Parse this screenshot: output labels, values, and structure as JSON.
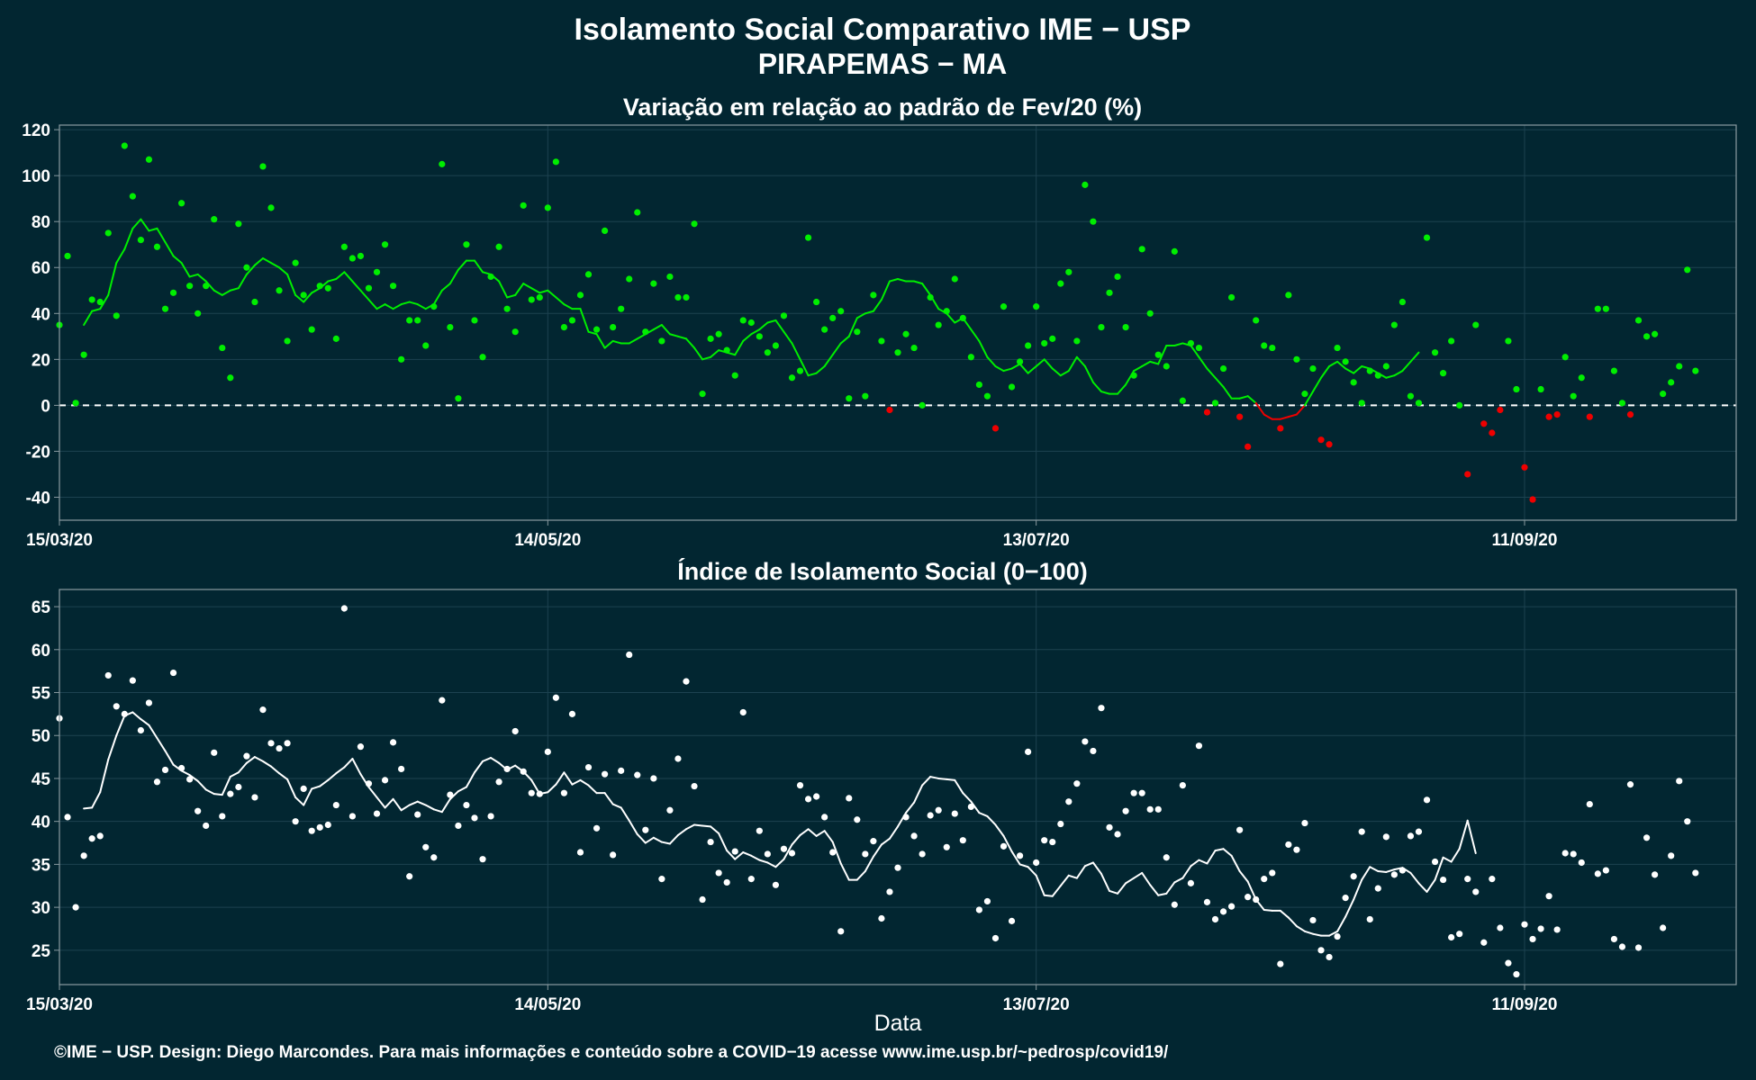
{
  "header": {
    "title_line1": "Isolamento Social Comparativo IME − USP",
    "title_line2": "PIRAPEMAS − MA"
  },
  "footer": {
    "credit": "©IME − USP. Design: Diego Marcondes. Para mais informações e conteúdo sobre a COVID−19 acesse www.ime.usp.br/~pedrosp/covid19/"
  },
  "colors": {
    "background": "#022631",
    "panel_border": "#8a9aa0",
    "grid": "#1d4250",
    "positive": "#00ee00",
    "negative": "#ee0000",
    "index_series": "#ffffff"
  },
  "chart_data": [
    {
      "type": "scatter",
      "title": "Variação em relação ao padrão de Fev/20 (%)",
      "xlabel": "",
      "ylabel": "",
      "x_start_date": "2020-03-15",
      "x_end_date": "2020-10-07",
      "x_ticks": [
        "15/03/20",
        "14/05/20",
        "13/07/20",
        "11/09/20"
      ],
      "y_ticks": [
        120,
        100,
        80,
        60,
        40,
        20,
        0,
        -20,
        -40
      ],
      "ylim": [
        -50,
        122
      ],
      "reference_line": 0,
      "grid": true,
      "series": [
        {
          "role": "daily",
          "values": [
            35,
            65,
            1,
            22,
            46,
            45,
            75,
            39,
            113,
            91,
            72,
            107,
            69,
            42,
            49,
            88,
            52,
            40,
            52,
            81,
            25,
            12,
            79,
            60,
            45,
            104,
            86,
            50,
            28,
            62,
            48,
            33,
            52,
            51,
            29,
            69,
            64,
            65,
            51,
            58,
            70,
            52,
            20,
            37,
            37,
            26,
            43,
            105,
            34,
            3,
            70,
            37,
            21,
            56,
            69,
            42,
            32,
            87,
            46,
            47,
            86,
            106,
            34,
            37,
            48,
            57,
            33,
            76,
            34,
            42,
            55,
            84,
            32,
            53,
            28,
            56,
            47,
            47,
            79,
            5,
            29,
            31,
            24,
            13,
            37,
            36,
            30,
            23,
            26,
            39,
            12,
            15,
            73,
            45,
            33,
            38,
            41,
            3,
            32,
            4,
            48,
            28,
            -2,
            23,
            31,
            25,
            0,
            47,
            35,
            41,
            55,
            38,
            21,
            9,
            4,
            -10,
            43,
            8,
            19,
            26,
            43,
            27,
            29,
            53,
            58,
            28,
            96,
            80,
            34,
            49,
            56,
            34,
            13,
            68,
            40,
            22,
            17,
            67,
            2,
            27,
            25,
            -3,
            1,
            16,
            47,
            -5,
            -18,
            37,
            26,
            25,
            -10,
            48,
            20,
            5,
            16,
            -15,
            -17,
            25,
            19,
            10,
            1,
            15,
            13,
            17,
            35,
            45,
            4,
            1,
            73,
            23,
            14,
            28,
            0,
            -30,
            35,
            -8,
            -12,
            -2,
            28,
            7,
            -27,
            -41,
            7,
            -5,
            -4,
            21,
            4,
            12,
            -5,
            42,
            42,
            15,
            1,
            -4,
            37,
            30,
            31,
            5,
            10,
            17,
            59,
            15
          ]
        },
        {
          "role": "moving-average",
          "values": [
            null,
            null,
            null,
            35,
            41,
            42,
            48,
            62,
            68,
            77,
            81,
            76,
            77,
            71,
            65,
            62,
            56,
            57,
            54,
            50,
            48,
            50,
            51,
            57,
            61,
            64,
            62,
            60,
            57,
            48,
            45,
            49,
            51,
            54,
            55,
            58,
            54,
            50,
            46,
            42,
            44,
            42,
            44,
            45,
            44,
            42,
            44,
            50,
            53,
            59,
            63,
            63,
            58,
            57,
            54,
            47,
            48,
            53,
            51,
            49,
            50,
            47,
            44,
            42,
            42,
            32,
            31,
            25,
            28,
            27,
            27,
            29,
            31,
            33,
            35,
            31,
            30,
            29,
            25,
            20,
            21,
            24,
            23,
            22,
            28,
            31,
            33,
            36,
            37,
            32,
            27,
            20,
            13,
            14,
            17,
            22,
            27,
            30,
            38,
            40,
            41,
            46,
            54,
            55,
            54,
            54,
            53,
            48,
            42,
            40,
            36,
            38,
            33,
            28,
            21,
            17,
            15,
            16,
            18,
            14,
            17,
            20,
            16,
            13,
            15,
            21,
            17,
            10,
            6,
            5,
            5,
            9,
            15,
            17,
            19,
            18,
            26,
            26,
            27,
            26,
            21,
            16,
            12,
            8,
            3,
            3,
            4,
            1,
            -4,
            -6,
            -6,
            -5,
            -4,
            0,
            6,
            12,
            17,
            19,
            16,
            14,
            17,
            16,
            14,
            12,
            13,
            15,
            19,
            23
          ]
        }
      ]
    },
    {
      "type": "scatter",
      "title": "Índice de Isolamento Social (0−100)",
      "xlabel": "Data",
      "ylabel": "",
      "x_start_date": "2020-03-15",
      "x_end_date": "2020-10-07",
      "x_ticks": [
        "15/03/20",
        "14/05/20",
        "13/07/20",
        "11/09/20"
      ],
      "y_ticks": [
        65,
        60,
        55,
        50,
        45,
        40,
        35,
        30,
        25
      ],
      "ylim": [
        21,
        67
      ],
      "grid": true,
      "series": [
        {
          "role": "daily",
          "values": [
            52,
            40.5,
            30,
            36,
            38,
            38.3,
            57,
            53.4,
            52.5,
            56.4,
            50.6,
            53.8,
            44.6,
            46,
            57.3,
            46.2,
            44.9,
            41.2,
            39.5,
            48,
            40.6,
            43.2,
            44,
            47.6,
            42.8,
            53,
            49.1,
            48.5,
            49.1,
            40,
            43.8,
            38.9,
            39.3,
            39.6,
            41.9,
            64.8,
            40.6,
            48.7,
            44.4,
            40.9,
            44.8,
            49.2,
            46.1,
            33.6,
            40.8,
            37,
            35.8,
            54.1,
            43.1,
            39.5,
            41.9,
            40.4,
            35.6,
            40.6,
            44.6,
            46.1,
            50.5,
            45.8,
            43.3,
            43.2,
            48.1,
            54.4,
            43.3,
            52.5,
            36.4,
            46.3,
            39.2,
            45.5,
            36.1,
            45.9,
            59.4,
            45.4,
            39,
            45,
            33.3,
            41.3,
            47.3,
            56.3,
            44.1,
            30.9,
            37.6,
            34,
            32.9,
            36.5,
            52.7,
            33.3,
            38.9,
            36.2,
            32.6,
            36.8,
            36.3,
            44.2,
            42.6,
            42.9,
            40.5,
            36.4,
            27.2,
            42.7,
            40.2,
            36.2,
            37.7,
            28.7,
            31.8,
            34.6,
            40.5,
            38.3,
            36.2,
            40.7,
            41.3,
            37,
            40.9,
            37.8,
            41.7,
            29.7,
            30.7,
            26.4,
            37.1,
            28.4,
            36,
            48.1,
            35.2,
            37.8,
            37.6,
            39.7,
            42.3,
            44.4,
            49.3,
            48.2,
            53.2,
            39.3,
            38.5,
            41.2,
            43.3,
            43.3,
            41.4,
            41.4,
            35.8,
            30.3,
            44.2,
            32.8,
            48.8,
            30.6,
            28.6,
            29.5,
            30.1,
            39,
            31.2,
            30.9,
            33.3,
            34,
            23.4,
            37.3,
            36.7,
            39.8,
            28.5,
            25,
            24.2,
            26.6,
            31.1,
            33.6,
            38.8,
            28.6,
            32.2,
            38.2,
            33.8,
            34.3,
            38.3,
            38.8,
            42.5,
            35.3,
            33.2,
            26.5,
            26.9,
            33.3,
            31.8,
            25.9,
            33.3,
            27.6,
            23.5,
            22.2,
            28,
            26.3,
            27.5,
            31.3,
            27.4,
            36.3,
            36.2,
            35.2,
            42,
            33.9,
            34.3,
            26.3,
            25.4,
            44.3,
            25.3,
            38.1,
            33.8,
            27.6,
            36,
            44.7,
            40,
            34
          ]
        },
        {
          "role": "moving-average",
          "values": [
            null,
            null,
            null,
            41.5,
            41.6,
            43.4,
            47.2,
            50,
            52.3,
            52.7,
            51.9,
            51.2,
            49.7,
            48.2,
            46.6,
            45.9,
            45.4,
            44.7,
            43.7,
            43.2,
            43.1,
            45.2,
            45.7,
            46.8,
            47.5,
            47,
            46.4,
            45.6,
            44.9,
            42.8,
            41.9,
            43.8,
            44.1,
            44.8,
            45.6,
            46.3,
            47.3,
            45.5,
            44,
            42.8,
            41.6,
            42.6,
            41.3,
            41.9,
            42.3,
            41.9,
            41.4,
            41.1,
            42.6,
            43.5,
            44,
            45.7,
            47,
            47.4,
            46.8,
            46,
            46.5,
            45.8,
            44.8,
            43.2,
            43.4,
            44.3,
            45.7,
            44.3,
            44.8,
            44.2,
            43.3,
            43.3,
            42,
            41.6,
            40.1,
            38.5,
            37.5,
            38.1,
            37.6,
            37.4,
            38.4,
            39.1,
            39.6,
            39.5,
            39.4,
            38.6,
            36.6,
            35.6,
            36.4,
            36,
            35.5,
            35.2,
            34.7,
            35.6,
            37.3,
            38.4,
            39.1,
            38.3,
            38.9,
            37.6,
            35.1,
            33.2,
            33.2,
            34.2,
            35.9,
            37.3,
            38,
            39.4,
            41,
            42.2,
            44.2,
            45.2,
            45,
            44.9,
            44.8,
            43.3,
            42.3,
            41,
            40.6,
            39.6,
            38.3,
            36.5,
            35,
            34.7,
            33.7,
            31.4,
            31.3,
            32.5,
            33.7,
            33.4,
            34.8,
            35.2,
            33.9,
            31.9,
            31.6,
            32.8,
            33.4,
            34,
            32.6,
            31.4,
            31.6,
            32.9,
            33.4,
            34.8,
            35.5,
            35.1,
            36.6,
            36.8,
            36,
            34.2,
            33,
            30.9,
            29.7,
            29.6,
            29.6,
            28.8,
            27.8,
            27.2,
            26.9,
            26.7,
            26.7,
            27.2,
            28.9,
            30.9,
            33.2,
            34.7,
            34.2,
            34.1,
            34.4,
            34.6,
            34,
            32.8,
            31.8,
            33.2,
            35.8,
            35.3,
            36.8,
            40.1,
            36.3
          ]
        }
      ]
    }
  ]
}
